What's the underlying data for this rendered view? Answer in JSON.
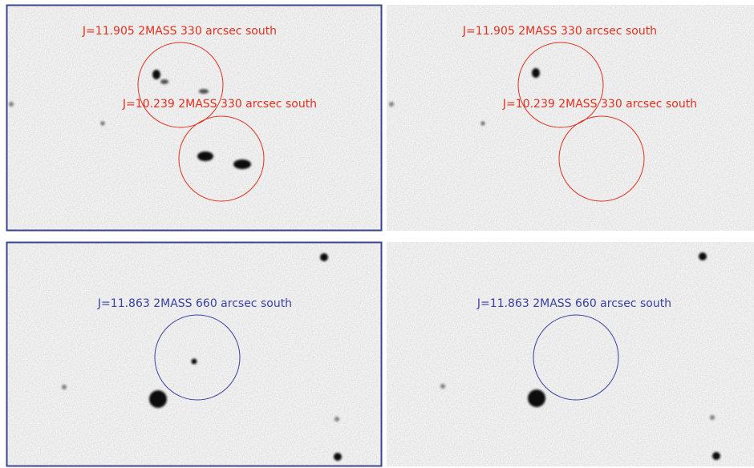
{
  "panels": [
    {
      "labels": [
        "J=11.905 2MASS 330 arcsec south",
        "J=10.239 2MASS 330 arcsec south"
      ]
    },
    {
      "labels": [
        "J=11.905 2MASS 330 arcsec south",
        "J=10.239 2MASS 330 arcsec south"
      ]
    },
    {
      "labels": [
        "J=11.863 2MASS 660 arcsec south"
      ]
    },
    {
      "labels": [
        "J=11.863 2MASS 660 arcsec south"
      ]
    }
  ]
}
